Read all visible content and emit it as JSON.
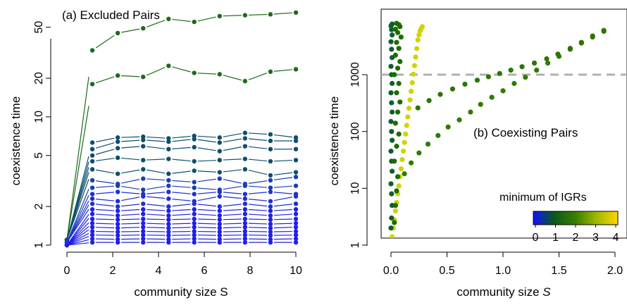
{
  "chart_data": [
    {
      "panel": "a",
      "type": "line",
      "title": "(a) Excluded Pairs",
      "xlabel": "community size S",
      "ylabel": "coexistence time",
      "xlim": [
        0,
        10
      ],
      "ylim": [
        1,
        70
      ],
      "yscale": "log",
      "xticks": [
        "0",
        "2",
        "4",
        "6",
        "8",
        "10"
      ],
      "yticks": [
        "1",
        "2",
        "5",
        "10",
        "20",
        "50"
      ],
      "x": [
        0,
        1.11,
        2.22,
        3.33,
        4.44,
        5.56,
        6.67,
        7.78,
        8.89,
        10
      ],
      "series": [
        {
          "color": "#1a6b1a",
          "values": [
            1.1,
            33,
            45,
            49,
            58,
            55,
            61,
            62,
            63,
            65
          ]
        },
        {
          "color": "#1a6b1a",
          "values": [
            1.1,
            18,
            21,
            20.5,
            25,
            22,
            21.5,
            19,
            22.5,
            23.5
          ]
        },
        {
          "color": "#0f4f6e",
          "values": [
            1.1,
            6.3,
            6.9,
            7.0,
            6.8,
            7.1,
            6.9,
            7.5,
            7.3,
            6.9
          ]
        },
        {
          "color": "#0f4f6e",
          "values": [
            1.1,
            5.6,
            6.4,
            6.6,
            6.4,
            6.7,
            6.3,
            6.8,
            6.5,
            6.5
          ]
        },
        {
          "color": "#0f4f6e",
          "values": [
            1.1,
            5.0,
            5.7,
            5.9,
            5.6,
            5.8,
            5.4,
            5.9,
            5.6,
            5.6
          ]
        },
        {
          "color": "#0f4f6e",
          "values": [
            1.1,
            4.5,
            4.8,
            4.6,
            4.7,
            4.5,
            4.6,
            4.7,
            4.5,
            4.6
          ]
        },
        {
          "color": "#0f4f6e",
          "values": [
            1.1,
            3.9,
            3.6,
            3.9,
            3.6,
            3.8,
            3.7,
            3.9,
            3.5,
            3.7
          ]
        },
        {
          "color": "#1a3fb0",
          "values": [
            1.05,
            3.2,
            3.0,
            3.3,
            3.2,
            3.1,
            3.3,
            3.0,
            3.2,
            3.4
          ]
        },
        {
          "color": "#1a3fb0",
          "values": [
            1.05,
            2.8,
            2.9,
            2.7,
            2.9,
            2.8,
            2.7,
            2.9,
            2.8,
            2.9
          ]
        },
        {
          "color": "#1f30d8",
          "values": [
            1.05,
            2.5,
            2.6,
            2.5,
            2.6,
            2.5,
            2.6,
            2.5,
            2.6,
            2.5
          ]
        },
        {
          "color": "#1f30d8",
          "values": [
            1.05,
            2.3,
            2.2,
            2.4,
            2.3,
            2.2,
            2.4,
            2.3,
            2.2,
            2.4
          ]
        },
        {
          "color": "#1f30d8",
          "values": [
            1.05,
            2.1,
            2.0,
            2.1,
            2.0,
            2.1,
            2.0,
            2.1,
            2.0,
            2.1
          ]
        },
        {
          "color": "#2020e6",
          "values": [
            1.0,
            1.9,
            1.85,
            1.9,
            1.85,
            1.9,
            1.85,
            1.9,
            1.85,
            1.9
          ]
        },
        {
          "color": "#2020e6",
          "values": [
            1.0,
            1.75,
            1.7,
            1.75,
            1.7,
            1.75,
            1.7,
            1.75,
            1.7,
            1.75
          ]
        },
        {
          "color": "#2020e6",
          "values": [
            1.0,
            1.6,
            1.58,
            1.6,
            1.58,
            1.6,
            1.58,
            1.6,
            1.58,
            1.6
          ]
        },
        {
          "color": "#2020e6",
          "values": [
            1.0,
            1.48,
            1.46,
            1.48,
            1.46,
            1.48,
            1.46,
            1.48,
            1.46,
            1.48
          ]
        },
        {
          "color": "#2020e6",
          "values": [
            1.0,
            1.38,
            1.36,
            1.38,
            1.36,
            1.38,
            1.36,
            1.38,
            1.36,
            1.38
          ]
        },
        {
          "color": "#2020e6",
          "values": [
            1.0,
            1.28,
            1.27,
            1.28,
            1.27,
            1.28,
            1.27,
            1.28,
            1.27,
            1.28
          ]
        },
        {
          "color": "#2020e6",
          "values": [
            1.0,
            1.2,
            1.19,
            1.2,
            1.19,
            1.2,
            1.19,
            1.2,
            1.19,
            1.2
          ]
        },
        {
          "color": "#2020e6",
          "values": [
            1.0,
            1.12,
            1.11,
            1.12,
            1.11,
            1.12,
            1.11,
            1.12,
            1.11,
            1.12
          ]
        },
        {
          "color": "#2020e6",
          "values": [
            1.0,
            1.05,
            1.05,
            1.05,
            1.05,
            1.05,
            1.05,
            1.05,
            1.05,
            1.05
          ]
        }
      ]
    },
    {
      "panel": "b",
      "type": "scatter",
      "title": "(b) Coexisting Pairs",
      "xlabel": "community size S",
      "ylabel": "coexistence time",
      "xlim": [
        -0.05,
        2.05
      ],
      "ylim": [
        0.8,
        8000
      ],
      "yscale": "log",
      "xticks": [
        "0.0",
        "0.5",
        "1.0",
        "1.5",
        "2.0"
      ],
      "yticks": [
        "1",
        "10",
        "100",
        "1000"
      ],
      "threshold": 1000,
      "legend_title": "minimum of IGRs",
      "legend_ticks": [
        "0",
        "1",
        "2",
        "3",
        "4"
      ],
      "series": [
        {
          "color": "#cfd400",
          "x": [
            0.0,
            0.01,
            0.02,
            0.03,
            0.04,
            0.05,
            0.06,
            0.07,
            0.08,
            0.09,
            0.1,
            0.11,
            0.12,
            0.13,
            0.14,
            0.15,
            0.16,
            0.17,
            0.18,
            0.19,
            0.2,
            0.21,
            0.22,
            0.23,
            0.24,
            0.25,
            0.26,
            0.27,
            0.28
          ],
          "y": [
            1.0,
            1.4,
            2,
            2.8,
            4,
            5.6,
            8,
            11,
            16,
            22,
            32,
            45,
            64,
            90,
            128,
            180,
            256,
            360,
            510,
            720,
            1020,
            1440,
            2040,
            2880,
            4080,
            5000,
            5900,
            6500,
            7000
          ]
        },
        {
          "color": "#0e5f2a",
          "x": [
            0.0,
            0.005,
            0.01,
            0.005,
            0.0,
            0.01,
            0.005,
            0.0,
            0.01,
            0.005,
            0.0,
            0.01,
            0.005,
            0.0,
            0.01,
            0.005,
            0.0,
            0.01,
            0.005,
            0.0,
            0.01,
            0.005,
            0.0,
            0.01
          ],
          "y": [
            2,
            3,
            5,
            8,
            12,
            20,
            30,
            45,
            70,
            100,
            150,
            220,
            320,
            480,
            700,
            1000,
            1400,
            2000,
            2800,
            3800,
            5000,
            6200,
            7200,
            7800
          ]
        },
        {
          "color": "#1f6b00",
          "x": [
            0.03,
            0.04,
            0.05,
            0.06,
            0.03,
            0.05,
            0.07,
            0.04,
            0.06,
            0.08,
            0.05,
            0.07,
            0.03,
            0.06,
            0.08,
            0.04,
            0.07,
            0.05,
            0.09,
            0.06,
            0.04,
            0.08,
            0.07,
            0.05
          ],
          "y": [
            2.5,
            5,
            9,
            16,
            30,
            55,
            90,
            140,
            220,
            330,
            480,
            700,
            1000,
            1300,
            1700,
            2200,
            2900,
            3700,
            4600,
            5500,
            6300,
            7000,
            7600,
            8000
          ]
        },
        {
          "color": "#2f7a00",
          "x": [
            0.12,
            0.18,
            0.25,
            0.33,
            0.42,
            0.51,
            0.61,
            0.71,
            0.8,
            0.9,
            1.0,
            1.1,
            1.2,
            1.3,
            1.4,
            1.5,
            1.6,
            1.7,
            1.8,
            1.9
          ],
          "y": [
            18,
            28,
            42,
            60,
            85,
            120,
            160,
            220,
            300,
            400,
            520,
            700,
            900,
            1200,
            1600,
            2100,
            2800,
            3600,
            4600,
            5800
          ]
        },
        {
          "color": "#2a7600",
          "x": [
            0.24,
            0.34,
            0.44,
            0.55,
            0.66,
            0.77,
            0.87,
            0.97,
            1.07,
            1.17,
            1.28,
            1.39,
            1.49,
            1.6,
            1.7,
            1.8,
            1.9
          ],
          "y": [
            260,
            350,
            450,
            560,
            680,
            800,
            920,
            1050,
            1200,
            1380,
            1600,
            1900,
            2300,
            2900,
            3700,
            4800,
            6000
          ]
        }
      ]
    }
  ]
}
